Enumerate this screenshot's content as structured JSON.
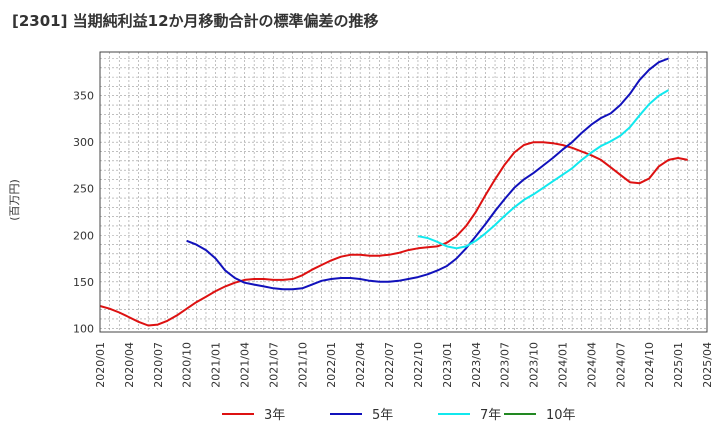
{
  "chart_data": {
    "type": "line",
    "title": "[2301]  当期純利益12か月移動合計の標準偏差の推移",
    "ylabel": "(百万円)",
    "xlabel": "",
    "ylim": [
      96,
      397
    ],
    "yticks": [
      100,
      150,
      200,
      250,
      300,
      350
    ],
    "x_start": "2020-01",
    "x_ticks": [
      "2020/01",
      "2020/04",
      "2020/07",
      "2020/10",
      "2021/01",
      "2021/04",
      "2021/07",
      "2021/10",
      "2022/01",
      "2022/04",
      "2022/07",
      "2022/10",
      "2023/01",
      "2023/04",
      "2023/07",
      "2023/10",
      "2024/01",
      "2024/04",
      "2024/07",
      "2024/10",
      "2025/01",
      "2025/04"
    ],
    "series": [
      {
        "name": "3年",
        "color": "#dd1111",
        "start_index": 0,
        "values": [
          124,
          121,
          117,
          112,
          107,
          103,
          104,
          108,
          114,
          121,
          128,
          134,
          140,
          145,
          149,
          152,
          153,
          153,
          152,
          152,
          153,
          157,
          163,
          168,
          173,
          177,
          179,
          179,
          178,
          178,
          179,
          181,
          184,
          186,
          187,
          188,
          192,
          199,
          210,
          225,
          243,
          260,
          276,
          289,
          297,
          300,
          300,
          299,
          297,
          294,
          290,
          286,
          281,
          273,
          265,
          257,
          256,
          261,
          274,
          281,
          283,
          281
        ]
      },
      {
        "name": "5年",
        "color": "#1111bb",
        "start_index": 9,
        "values": [
          194,
          190,
          184,
          175,
          162,
          154,
          149,
          147,
          145,
          143,
          142,
          142,
          143,
          147,
          151,
          153,
          154,
          154,
          153,
          151,
          150,
          150,
          151,
          153,
          155,
          158,
          162,
          167,
          175,
          186,
          199,
          212,
          226,
          239,
          251,
          260,
          267,
          275,
          283,
          292,
          300,
          310,
          319,
          326,
          331,
          340,
          352,
          367,
          378,
          386,
          390
        ]
      },
      {
        "name": "7年",
        "color": "#11e8ee",
        "start_index": 33,
        "values": [
          199,
          197,
          193,
          188,
          186,
          188,
          194,
          202,
          211,
          221,
          230,
          238,
          244,
          251,
          258,
          265,
          272,
          281,
          289,
          296,
          301,
          307,
          316,
          329,
          341,
          350,
          356
        ]
      },
      {
        "name": "10年",
        "color": "#228822",
        "start_index": 0,
        "values": []
      }
    ]
  }
}
